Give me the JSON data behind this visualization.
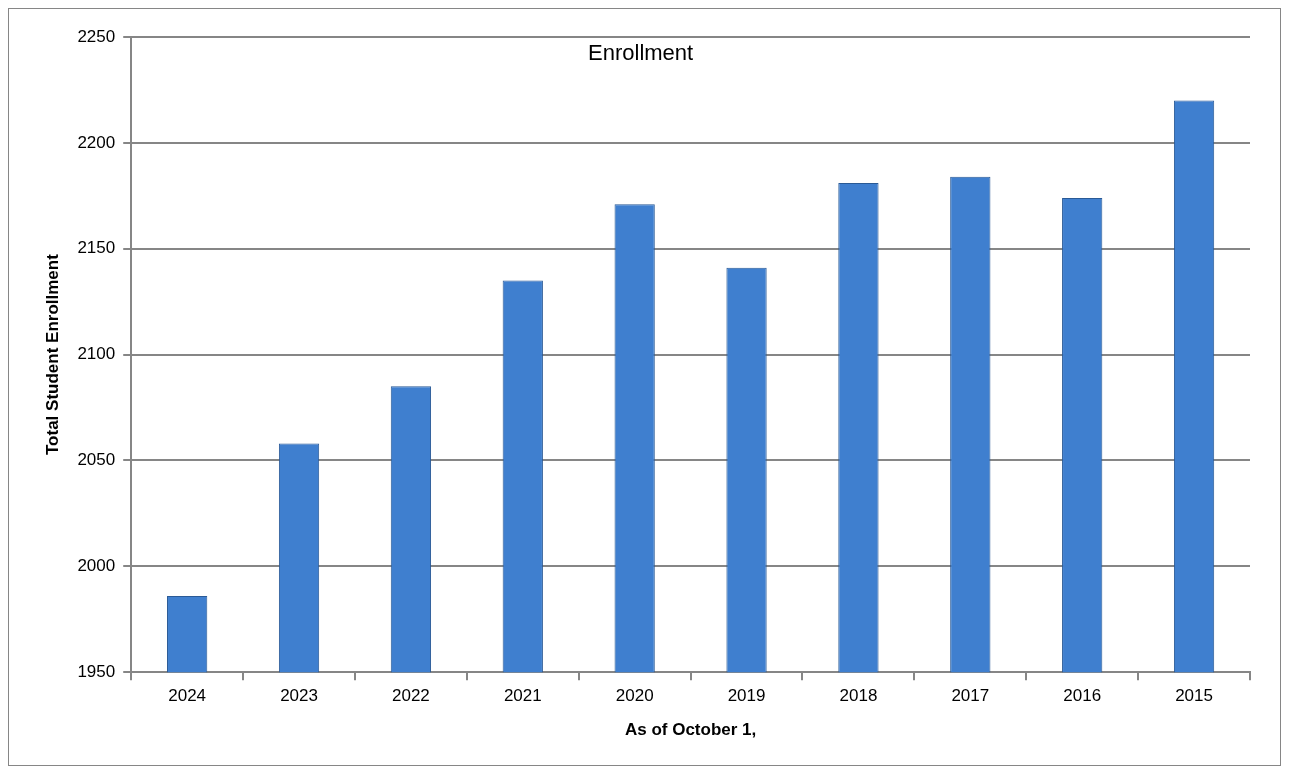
{
  "chart_data": {
    "type": "bar",
    "title": "Enrollment",
    "xlabel": "As of October 1,",
    "ylabel": "Total Student Enrollment",
    "categories": [
      "2024",
      "2023",
      "2022",
      "2021",
      "2020",
      "2019",
      "2018",
      "2017",
      "2016",
      "2015"
    ],
    "values": [
      1986,
      2058,
      2085,
      2135,
      2171,
      2141,
      2181,
      2184,
      2174,
      2220
    ],
    "color": "#3f7fcf",
    "ylim": [
      1950,
      2250
    ],
    "yticks": [
      1950,
      2000,
      2050,
      2100,
      2150,
      2200,
      2250
    ],
    "grid": "y"
  }
}
